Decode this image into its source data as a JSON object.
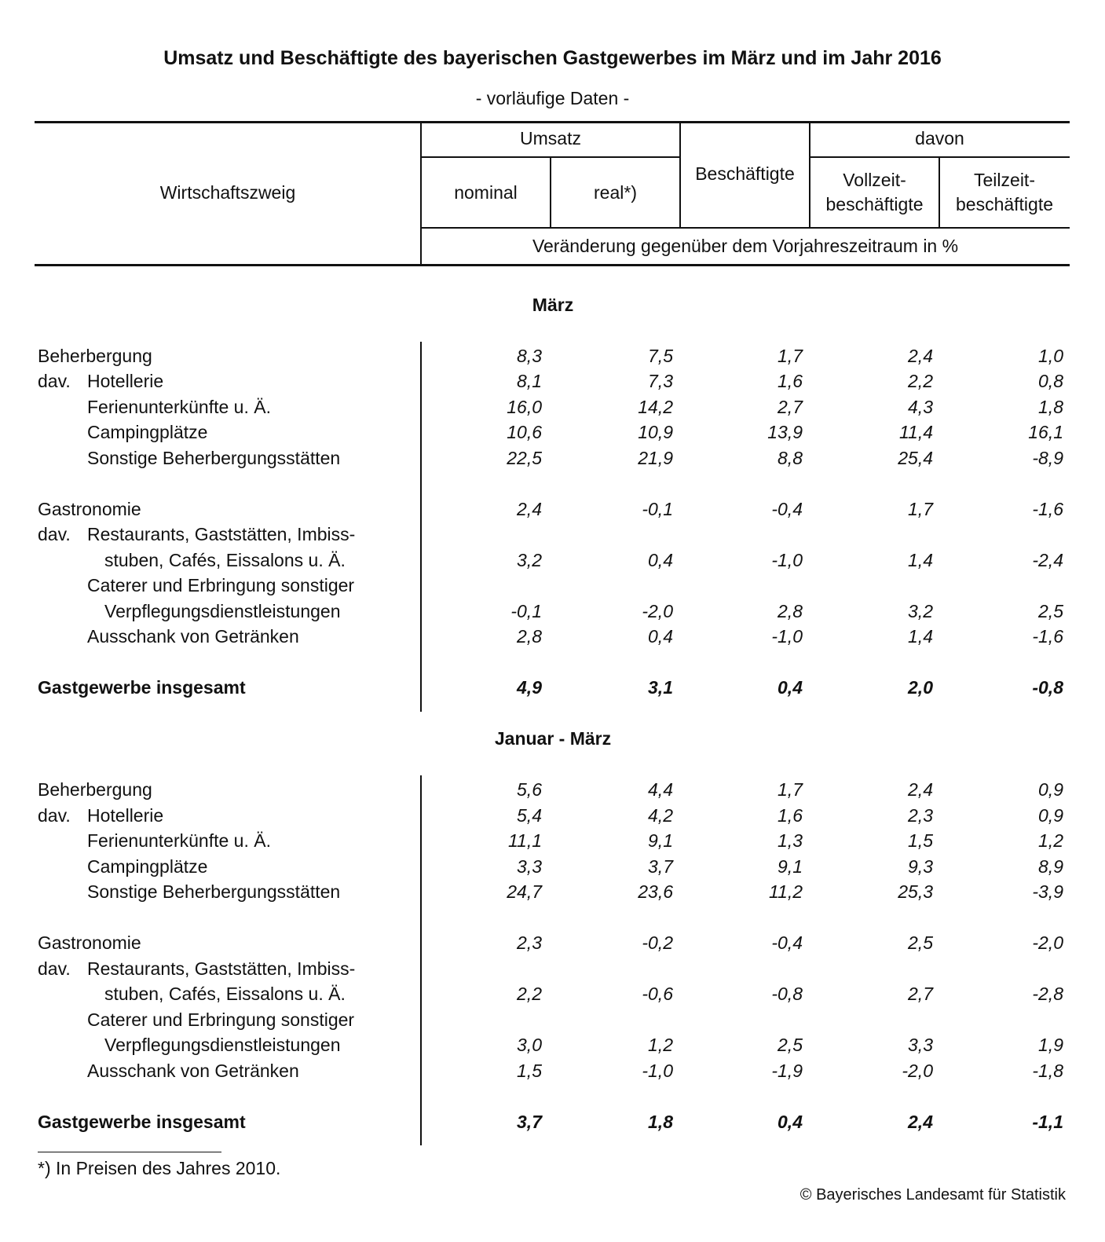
{
  "title": "Umsatz und Beschäftigte des bayerischen Gastgewerbes im März und im Jahr 2016",
  "subtitle": "- vorläufige Daten -",
  "header": {
    "wirtschaftszweig": "Wirtschaftszweig",
    "umsatz": "Umsatz",
    "nominal": "nominal",
    "real": "real*)",
    "beschaeftigte": "Beschäftigte",
    "davon": "davon",
    "vollzeit_1": "Vollzeit-",
    "vollzeit_2": "beschäftigte",
    "teilzeit_1": "Teilzeit-",
    "teilzeit_2": "beschäftigte",
    "unit": "Veränderung gegenüber dem Vorjahreszeitraum in %"
  },
  "sections": [
    {
      "heading": "März",
      "rows": [
        {
          "label": "Beherbergung",
          "level": 0,
          "values": [
            "8,3",
            "7,5",
            "1,7",
            "2,4",
            "1,0"
          ]
        },
        {
          "prefix": "dav.",
          "label": "Hotellerie",
          "level": 1,
          "values": [
            "8,1",
            "7,3",
            "1,6",
            "2,2",
            "0,8"
          ]
        },
        {
          "label": "Ferienunterkünfte u. Ä.",
          "level": 1,
          "values": [
            "16,0",
            "14,2",
            "2,7",
            "4,3",
            "1,8"
          ]
        },
        {
          "label": "Campingplätze",
          "level": 1,
          "values": [
            "10,6",
            "10,9",
            "13,9",
            "11,4",
            "16,1"
          ]
        },
        {
          "label": "Sonstige Beherbergungsstätten",
          "level": 1,
          "values": [
            "22,5",
            "21,9",
            "8,8",
            "25,4",
            "-8,9"
          ]
        },
        {
          "spacer": true
        },
        {
          "label": "Gastronomie",
          "level": 0,
          "values": [
            "2,4",
            "-0,1",
            "-0,4",
            "1,7",
            "-1,6"
          ]
        },
        {
          "prefix": "dav.",
          "label": "Restaurants, Gaststätten, Imbiss-",
          "level": 1
        },
        {
          "label": "stuben, Cafés, Eissalons u. Ä.",
          "level": 2,
          "values": [
            "3,2",
            "0,4",
            "-1,0",
            "1,4",
            "-2,4"
          ]
        },
        {
          "label": "Caterer und Erbringung sonstiger",
          "level": 1
        },
        {
          "label": "Verpflegungsdienstleistungen",
          "level": 2,
          "values": [
            "-0,1",
            "-2,0",
            "2,8",
            "3,2",
            "2,5"
          ]
        },
        {
          "label": "Ausschank von Getränken",
          "level": 1,
          "values": [
            "2,8",
            "0,4",
            "-1,0",
            "1,4",
            "-1,6"
          ]
        },
        {
          "spacer": true
        },
        {
          "label": "Gastgewerbe insgesamt",
          "level": 0,
          "bold": true,
          "values": [
            "4,9",
            "3,1",
            "0,4",
            "2,0",
            "-0,8"
          ]
        }
      ]
    },
    {
      "heading": "Januar - März",
      "rows": [
        {
          "label": "Beherbergung",
          "level": 0,
          "values": [
            "5,6",
            "4,4",
            "1,7",
            "2,4",
            "0,9"
          ]
        },
        {
          "prefix": "dav.",
          "label": "Hotellerie",
          "level": 1,
          "values": [
            "5,4",
            "4,2",
            "1,6",
            "2,3",
            "0,9"
          ]
        },
        {
          "label": "Ferienunterkünfte u. Ä.",
          "level": 1,
          "values": [
            "11,1",
            "9,1",
            "1,3",
            "1,5",
            "1,2"
          ]
        },
        {
          "label": "Campingplätze",
          "level": 1,
          "values": [
            "3,3",
            "3,7",
            "9,1",
            "9,3",
            "8,9"
          ]
        },
        {
          "label": "Sonstige Beherbergungsstätten",
          "level": 1,
          "values": [
            "24,7",
            "23,6",
            "11,2",
            "25,3",
            "-3,9"
          ]
        },
        {
          "spacer": true
        },
        {
          "label": "Gastronomie",
          "level": 0,
          "values": [
            "2,3",
            "-0,2",
            "-0,4",
            "2,5",
            "-2,0"
          ]
        },
        {
          "prefix": "dav.",
          "label": "Restaurants, Gaststätten, Imbiss-",
          "level": 1
        },
        {
          "label": "stuben, Cafés, Eissalons u. Ä.",
          "level": 2,
          "values": [
            "2,2",
            "-0,6",
            "-0,8",
            "2,7",
            "-2,8"
          ]
        },
        {
          "label": "Caterer und Erbringung sonstiger",
          "level": 1
        },
        {
          "label": "Verpflegungsdienstleistungen",
          "level": 2,
          "values": [
            "3,0",
            "1,2",
            "2,5",
            "3,3",
            "1,9"
          ]
        },
        {
          "label": "Ausschank von Getränken",
          "level": 1,
          "values": [
            "1,5",
            "-1,0",
            "-1,9",
            "-2,0",
            "-1,8"
          ]
        },
        {
          "spacer": true
        },
        {
          "label": "Gastgewerbe insgesamt",
          "level": 0,
          "bold": true,
          "values": [
            "3,7",
            "1,8",
            "0,4",
            "2,4",
            "-1,1"
          ]
        }
      ]
    }
  ],
  "footnote": "*) In Preisen des Jahres 2010.",
  "copyright": "© Bayerisches Landesamt für Statistik"
}
